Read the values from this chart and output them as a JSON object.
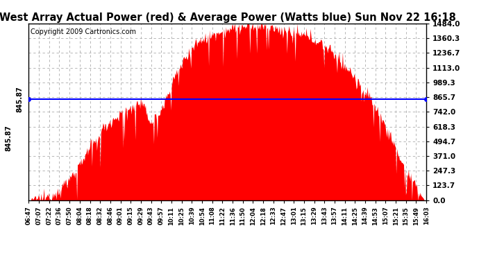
{
  "title": "West Array Actual Power (red) & Average Power (Watts blue) Sun Nov 22 16:18",
  "copyright": "Copyright 2009 Cartronics.com",
  "avg_power": 845.87,
  "y_max": 1484.0,
  "y_min": 0.0,
  "y_ticks": [
    0.0,
    123.7,
    247.3,
    371.0,
    494.7,
    618.3,
    742.0,
    865.7,
    989.3,
    1113.0,
    1236.7,
    1360.3,
    1484.0
  ],
  "fill_color": "#FF0000",
  "line_color": "#0000FF",
  "bg_color": "#FFFFFF",
  "grid_color": "#AAAAAA",
  "title_fontsize": 10.5,
  "copyright_fontsize": 7,
  "x_tick_labels": [
    "06:47",
    "07:07",
    "07:22",
    "07:36",
    "07:50",
    "08:04",
    "08:18",
    "08:32",
    "08:46",
    "09:01",
    "09:15",
    "09:29",
    "09:43",
    "09:57",
    "10:11",
    "10:25",
    "10:39",
    "10:54",
    "11:08",
    "11:22",
    "11:36",
    "11:50",
    "12:04",
    "12:18",
    "12:33",
    "12:47",
    "13:01",
    "13:15",
    "13:29",
    "13:43",
    "13:57",
    "14:11",
    "14:25",
    "14:39",
    "14:53",
    "15:07",
    "15:21",
    "15:35",
    "15:49",
    "16:03"
  ],
  "base_envelope": [
    0,
    10,
    30,
    80,
    180,
    300,
    430,
    560,
    660,
    720,
    780,
    820,
    650,
    750,
    980,
    1150,
    1280,
    1350,
    1390,
    1420,
    1440,
    1450,
    1460,
    1460,
    1440,
    1420,
    1400,
    1380,
    1350,
    1300,
    1220,
    1130,
    1020,
    900,
    780,
    620,
    430,
    250,
    100,
    0
  ]
}
